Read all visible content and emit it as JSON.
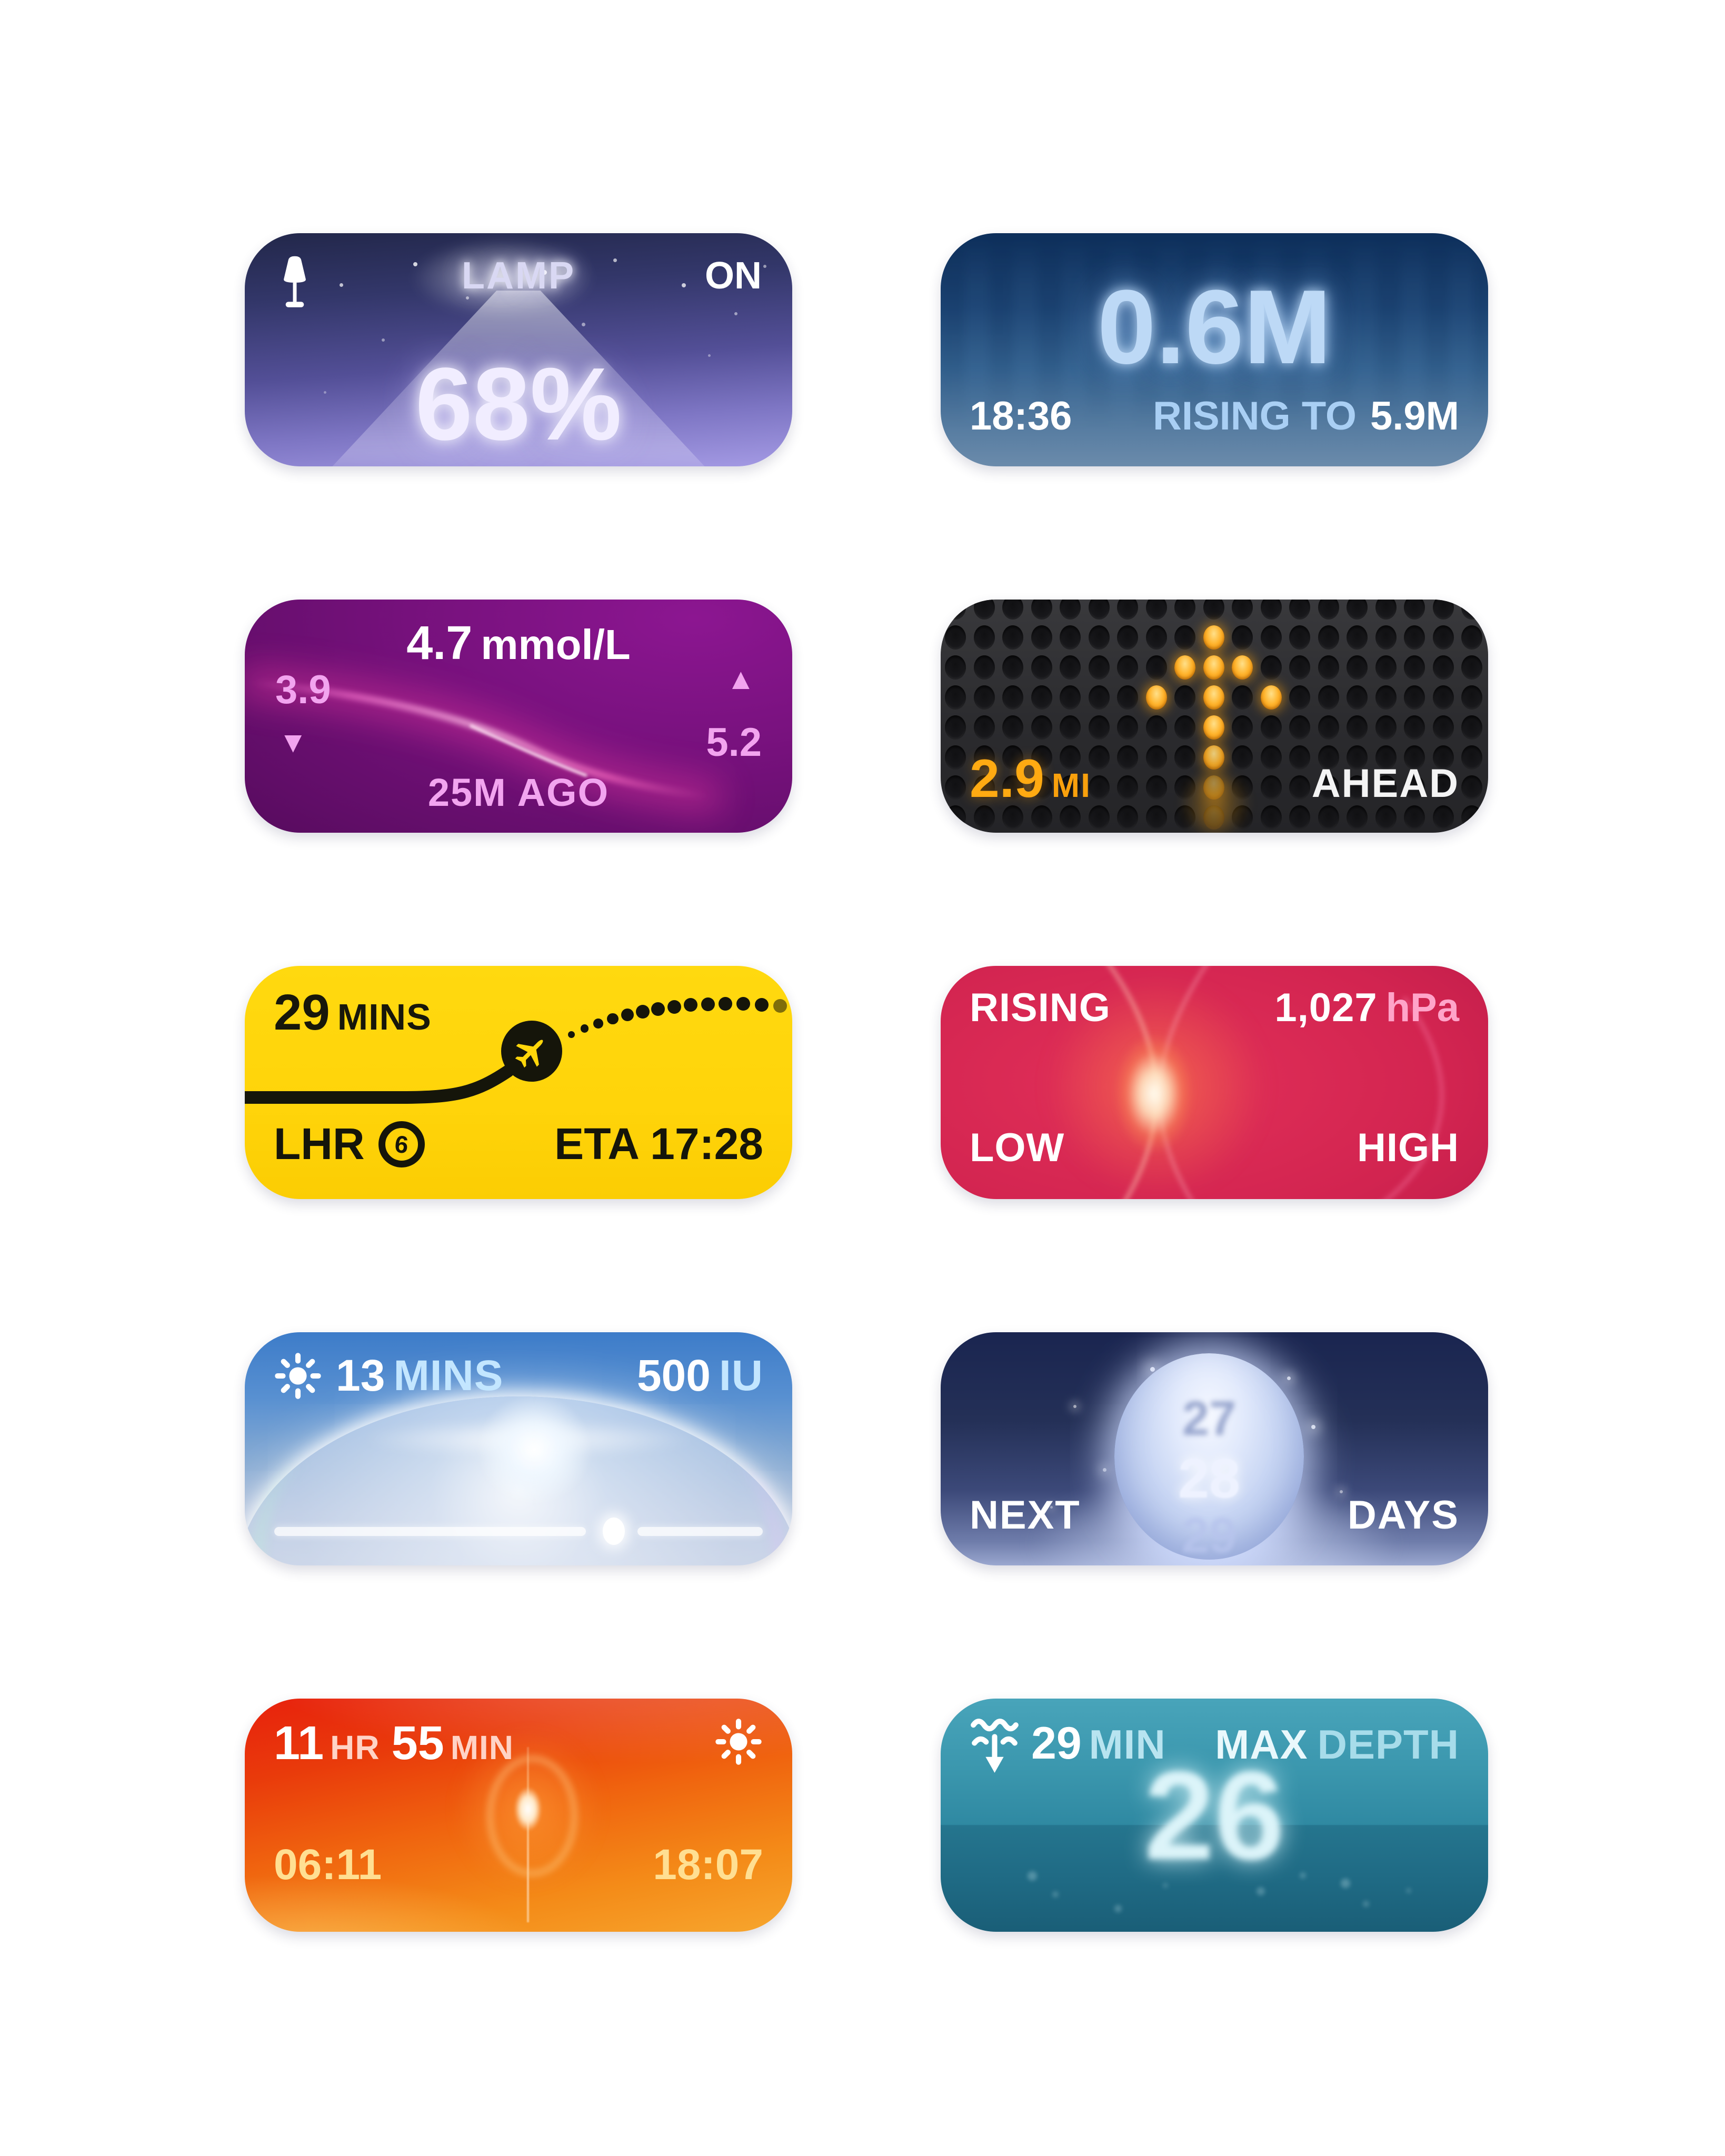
{
  "page": {
    "background": "#ffffff"
  },
  "cards": {
    "lamp": {
      "title": "LAMP",
      "status": "ON",
      "value": "68%",
      "accent": "#a49ae4",
      "icon": "lamp-icon"
    },
    "tide": {
      "value": "0.6M",
      "time": "18:36",
      "trend": "RISING TO",
      "target": "5.9M",
      "accent": "#bdd9f6"
    },
    "glucose": {
      "value": "4.7",
      "unit": "mmol/L",
      "low": "3.9",
      "high": "5.2",
      "down_arrow": "▼",
      "up_arrow": "▲",
      "ago": "25M AGO",
      "accent": "#f2a4ef"
    },
    "distance": {
      "value": "2.9",
      "unit": "MI",
      "label": "AHEAD",
      "dot_color": "#ffb42d",
      "grid": {
        "cols": 19,
        "rows": 8
      },
      "arrow_cells": [
        [
          9,
          1,
          1
        ],
        [
          8,
          2,
          1
        ],
        [
          9,
          2,
          1
        ],
        [
          10,
          2,
          1
        ],
        [
          7,
          3,
          1
        ],
        [
          9,
          3,
          1
        ],
        [
          11,
          3,
          1
        ],
        [
          9,
          4,
          1
        ],
        [
          9,
          5,
          0.9
        ],
        [
          9,
          6,
          0.55
        ],
        [
          9,
          7,
          0.25
        ]
      ]
    },
    "flight": {
      "duration_value": "29",
      "duration_unit": "MINS",
      "airport": "LHR",
      "terminal": "6",
      "eta": "ETA 17:28",
      "accent": "#ffd60a",
      "icon": "airplane-icon"
    },
    "barometer": {
      "trend": "RISING",
      "value": "1,027",
      "unit": "hPa",
      "low_label": "LOW",
      "high_label": "HIGH",
      "accent": "#d22450"
    },
    "uv": {
      "mins_value": "13",
      "mins_unit": "MINS",
      "dose_value": "500",
      "dose_unit": "IU",
      "slider_position": "64%",
      "icon": "sun-icon"
    },
    "moon": {
      "prev_day": "27",
      "current_day": "28",
      "next_day": "29",
      "left_label": "NEXT",
      "right_label": "DAYS"
    },
    "daylight": {
      "hours": "11",
      "hours_unit": "HR",
      "minutes": "55",
      "minutes_unit": "MIN",
      "sunrise": "06:11",
      "sunset": "18:07",
      "icon": "sun-icon"
    },
    "dive": {
      "duration_value": "29",
      "duration_unit": "MIN",
      "max_label": "MAX",
      "depth_label": "DEPTH",
      "depth_value": "26",
      "icon": "dive-icon"
    }
  }
}
